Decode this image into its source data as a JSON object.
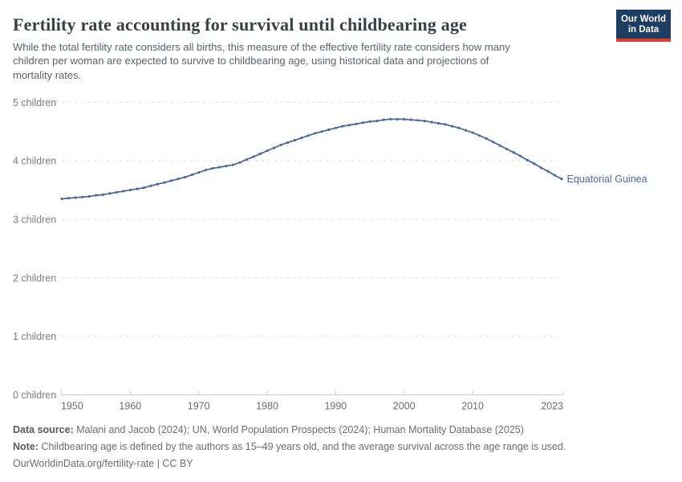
{
  "header": {
    "title": "Fertility rate accounting for survival until childbearing age",
    "logo": {
      "line1": "Our World",
      "line2": "in Data",
      "bg_color": "#1d3d63",
      "accent_color": "#dc3d2e"
    }
  },
  "subtitle": {
    "lines": [
      "While the total fertility rate considers all births, this measure of the effective fertility rate considers how many",
      "children per woman are expected to survive to childbearing age, using historical data and projections of",
      "mortality rates."
    ]
  },
  "chart_data": {
    "type": "line",
    "title": "Fertility rate accounting for survival until childbearing age",
    "entity": "Equatorial Guinea",
    "xlabel": "",
    "ylabel": "",
    "xlim": [
      1950,
      2023
    ],
    "ylim": [
      0,
      5
    ],
    "grid": "horizontal-dashed",
    "grid_color": "#dcdcdc",
    "axis_color": "#cccccc",
    "y_tick_label_color": "#7e7e7e",
    "x_tick_label_color": "#6d6d6d",
    "x_ticks": {
      "years": [
        1950,
        1960,
        1970,
        1980,
        1990,
        2000,
        2010,
        2023
      ],
      "labels": [
        "1950",
        "1960",
        "1970",
        "1980",
        "1990",
        "2000",
        "2010",
        "2023"
      ]
    },
    "y_ticks": {
      "values": [
        0,
        1,
        2,
        3,
        4,
        5
      ],
      "labels": [
        "0 children",
        "1 children",
        "2 children",
        "3 children",
        "4 children",
        "5 children"
      ]
    },
    "series": [
      {
        "name": "Equatorial Guinea",
        "color": "#4C6A9C",
        "years": [
          1950,
          1951,
          1952,
          1953,
          1954,
          1955,
          1956,
          1957,
          1958,
          1959,
          1960,
          1961,
          1962,
          1963,
          1964,
          1965,
          1966,
          1967,
          1968,
          1969,
          1970,
          1971,
          1972,
          1973,
          1974,
          1975,
          1976,
          1977,
          1978,
          1979,
          1980,
          1981,
          1982,
          1983,
          1984,
          1985,
          1986,
          1987,
          1988,
          1989,
          1990,
          1991,
          1992,
          1993,
          1994,
          1995,
          1996,
          1997,
          1998,
          1999,
          2000,
          2001,
          2002,
          2003,
          2004,
          2005,
          2006,
          2007,
          2008,
          2009,
          2010,
          2011,
          2012,
          2013,
          2014,
          2015,
          2016,
          2017,
          2018,
          2019,
          2020,
          2021,
          2022,
          2023
        ],
        "values": [
          3.35,
          3.36,
          3.37,
          3.38,
          3.39,
          3.41,
          3.42,
          3.44,
          3.46,
          3.48,
          3.5,
          3.52,
          3.54,
          3.57,
          3.6,
          3.63,
          3.66,
          3.69,
          3.72,
          3.76,
          3.8,
          3.84,
          3.87,
          3.89,
          3.91,
          3.93,
          3.97,
          4.02,
          4.07,
          4.12,
          4.17,
          4.22,
          4.27,
          4.31,
          4.35,
          4.39,
          4.43,
          4.47,
          4.5,
          4.53,
          4.56,
          4.59,
          4.61,
          4.63,
          4.65,
          4.67,
          4.68,
          4.7,
          4.71,
          4.71,
          4.71,
          4.7,
          4.69,
          4.68,
          4.66,
          4.64,
          4.62,
          4.59,
          4.56,
          4.52,
          4.48,
          4.43,
          4.38,
          4.32,
          4.26,
          4.2,
          4.14,
          4.08,
          4.01,
          3.95,
          3.88,
          3.82,
          3.75,
          3.69
        ]
      }
    ]
  },
  "footer": {
    "data_source_label": "Data source:",
    "data_source_text": " Malani and Jacob (2024); UN, World Population Prospects (2024); Human Mortality Database (2025)",
    "note_label": "Note:",
    "note_text": " Childbearing age is defined by the authors as 15–49 years old, and the average survival across the age range is used.",
    "license": "OurWorldinData.org/fertility-rate | CC BY"
  }
}
